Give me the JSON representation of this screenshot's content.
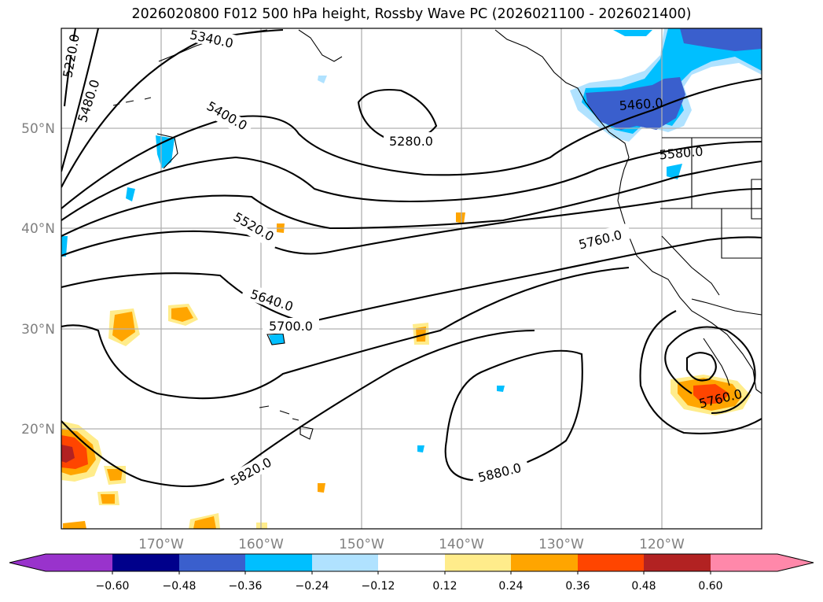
{
  "title": "2026020800 F012 500 hPa height, Rossby Wave PC (2026021100 - 2026021400)",
  "map": {
    "lat_labels": [
      "50°N",
      "40°N",
      "30°N",
      "20°N"
    ],
    "lon_labels": [
      "170°W",
      "160°W",
      "150°W",
      "140°W",
      "130°W",
      "120°W"
    ],
    "contour_labels": [
      "5220.0",
      "5340.0",
      "5480.0",
      "5400.0",
      "5280.0",
      "5460.0",
      "5580.0",
      "5520.0",
      "5760.0",
      "5640.0",
      "5700.0",
      "5820.0",
      "5880.0",
      "5760.0"
    ]
  },
  "colorbar": {
    "ticks": [
      "−0.60",
      "−0.48",
      "−0.36",
      "−0.24",
      "−0.12",
      "0.12",
      "0.24",
      "0.36",
      "0.48",
      "0.60"
    ],
    "colors": [
      "#9933cc",
      "#00008b",
      "#3a5fcd",
      "#00bfff",
      "#b0e2ff",
      "#ffffff",
      "#ffec8b",
      "#ffa500",
      "#ff4500",
      "#b22222",
      "#ff88aa"
    ]
  }
}
